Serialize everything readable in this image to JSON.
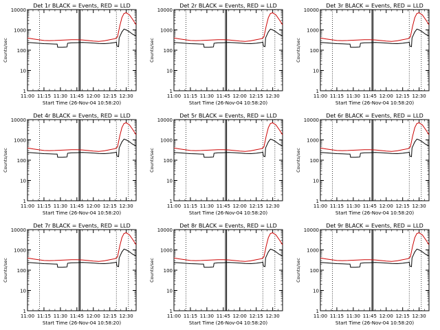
{
  "chart_data": {
    "type": "line",
    "common": {
      "xlabel": "Start Time (26-Nov-04 10:58:20)",
      "ylabel": "Counts/sec",
      "x_tick_labels": [
        "11:00",
        "11:15",
        "11:30",
        "11:45",
        "12:00",
        "12:15",
        "12:30"
      ],
      "x_tick_minutes": [
        0,
        15,
        30,
        45,
        60,
        75,
        90
      ],
      "xlim_minutes_after_1100": [
        0,
        99
      ],
      "y_scale": "log",
      "ylim": [
        1,
        10000
      ],
      "y_tick_labels": [
        "1",
        "10",
        "100",
        "1000",
        "10000"
      ],
      "series_colors": {
        "Events": "#000000",
        "LLD": "#cc0000"
      },
      "vertical_markers": {
        "dotted_minutes": [
          11,
          81,
          92
        ],
        "solid_double_minutes": [
          47,
          48
        ]
      }
    },
    "panels": [
      {
        "title": "Det 1r  BLACK = Events,  RED = LLD"
      },
      {
        "title": "Det 2r  BLACK = Events,  RED = LLD"
      },
      {
        "title": "Det 3r  BLACK = Events,  RED = LLD"
      },
      {
        "title": "Det 4r  BLACK = Events,  RED = LLD"
      },
      {
        "title": "Det 5r  BLACK = Events,  RED = LLD"
      },
      {
        "title": "Det 6r  BLACK = Events,  RED = LLD"
      },
      {
        "title": "Det 7r  BLACK = Events,  RED = LLD"
      },
      {
        "title": "Det 8r  BLACK = Events,  RED = LLD"
      },
      {
        "title": "Det 9r  BLACK = Events,  RED = LLD"
      }
    ],
    "series": [
      {
        "name": "Events",
        "points": [
          [
            0,
            240
          ],
          [
            5,
            230
          ],
          [
            10,
            220
          ],
          [
            15,
            210
          ],
          [
            20,
            205
          ],
          [
            25,
            200
          ],
          [
            27,
            200
          ],
          [
            27.5,
            140
          ],
          [
            32,
            140
          ],
          [
            36,
            145
          ],
          [
            36.5,
            220
          ],
          [
            40,
            230
          ],
          [
            45,
            235
          ],
          [
            50,
            240
          ],
          [
            55,
            235
          ],
          [
            60,
            225
          ],
          [
            65,
            215
          ],
          [
            70,
            210
          ],
          [
            75,
            220
          ],
          [
            80,
            240
          ],
          [
            81,
            250
          ],
          [
            81.5,
            160
          ],
          [
            83,
            150
          ],
          [
            83.5,
            400
          ],
          [
            86,
            800
          ],
          [
            88,
            1100
          ],
          [
            90,
            1000
          ],
          [
            93,
            800
          ],
          [
            96,
            600
          ],
          [
            99,
            500
          ]
        ]
      },
      {
        "name": "LLD",
        "points": [
          [
            0,
            400
          ],
          [
            5,
            360
          ],
          [
            10,
            330
          ],
          [
            15,
            300
          ],
          [
            20,
            295
          ],
          [
            25,
            300
          ],
          [
            30,
            310
          ],
          [
            35,
            320
          ],
          [
            40,
            330
          ],
          [
            45,
            330
          ],
          [
            50,
            320
          ],
          [
            55,
            300
          ],
          [
            60,
            280
          ],
          [
            65,
            270
          ],
          [
            70,
            290
          ],
          [
            75,
            330
          ],
          [
            80,
            370
          ],
          [
            82,
            450
          ],
          [
            84,
            1500
          ],
          [
            86,
            4000
          ],
          [
            88,
            6500
          ],
          [
            90,
            7000
          ],
          [
            93,
            5500
          ],
          [
            96,
            3200
          ],
          [
            99,
            1800
          ]
        ]
      }
    ]
  }
}
